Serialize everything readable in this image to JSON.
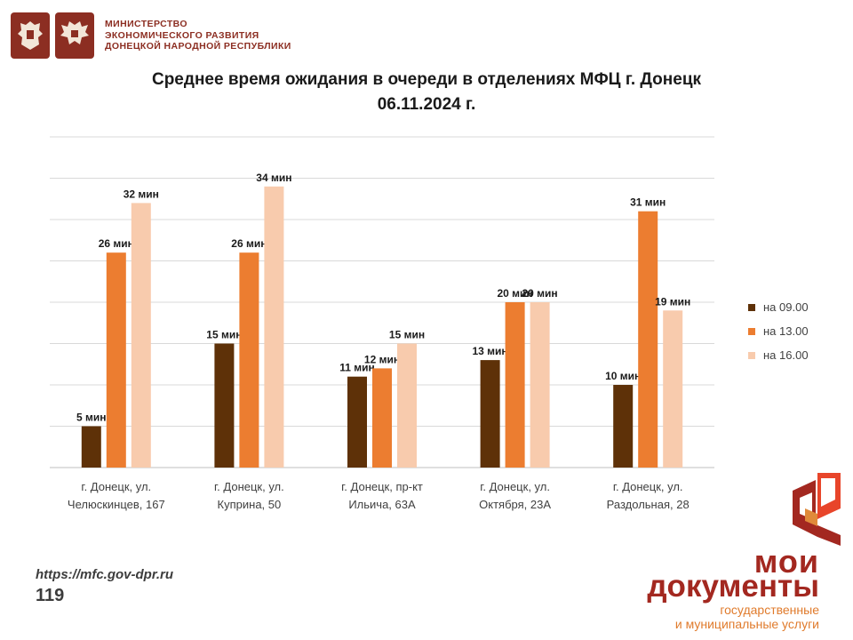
{
  "header": {
    "ministry_lines": [
      "МИНИСТЕРСТВО",
      "ЭКОНОМИЧЕСКОГО РАЗВИТИЯ",
      "ДОНЕЦКОЙ НАРОДНОЙ РЕСПУБЛИКИ"
    ]
  },
  "chart_data": {
    "type": "bar",
    "title": "Среднее время ожидания в очереди в отделениях МФЦ г. Донецк",
    "subtitle": "06.11.2024 г.",
    "categories": [
      [
        "г. Донецк, ул.",
        "Челюскинцев, 167"
      ],
      [
        "г. Донецк, ул.",
        "Куприна, 50"
      ],
      [
        "г. Донецк, пр-кт",
        "Ильича, 63А"
      ],
      [
        "г. Донецк, ул.",
        "Октября, 23А"
      ],
      [
        "г. Донецк, ул.",
        "Раздольная, 28"
      ]
    ],
    "series": [
      {
        "name": "на 09.00",
        "color": "#5e3108",
        "values": [
          5,
          15,
          11,
          13,
          10
        ]
      },
      {
        "name": "на 13.00",
        "color": "#ec7d30",
        "values": [
          26,
          26,
          12,
          20,
          31
        ]
      },
      {
        "name": "на 16.00",
        "color": "#f8cbad",
        "values": [
          32,
          34,
          15,
          20,
          19
        ]
      }
    ],
    "value_suffix": " мин",
    "ylim": [
      0,
      40
    ],
    "grid": true,
    "legend_position": "right"
  },
  "footer": {
    "url": "https://mfc.gov-dpr.ru",
    "page_number": "119"
  },
  "brand": {
    "moi": "мои",
    "documents": "документы",
    "sub1": "государственные",
    "sub2": "и муниципальные услуги"
  }
}
